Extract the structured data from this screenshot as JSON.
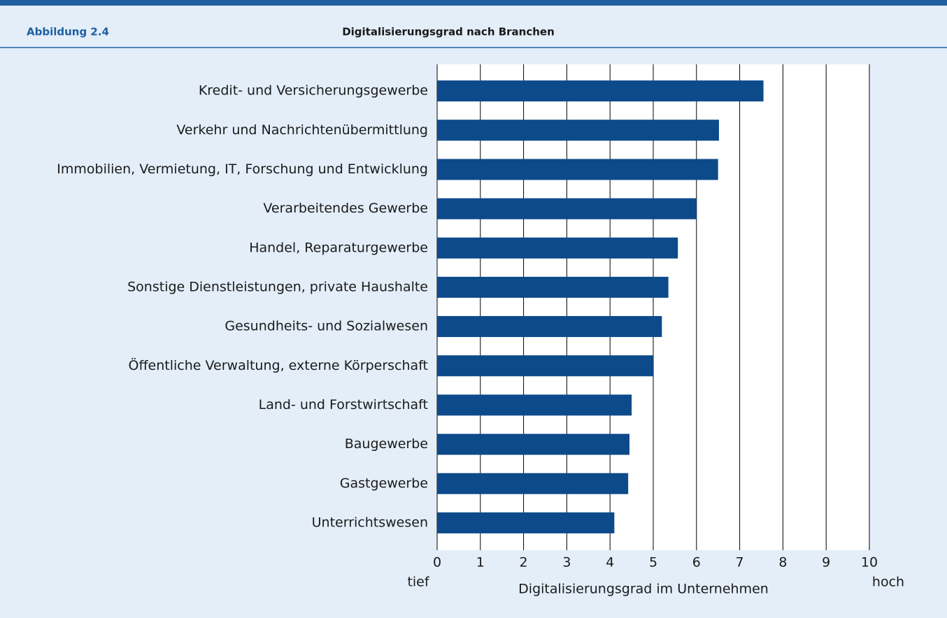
{
  "chart_data": {
    "type": "bar",
    "orientation": "horizontal",
    "figure_label": "Abbildung 2.4",
    "title": "Digitalisierungsgrad nach Branchen",
    "xlabel": "Digitalisierungsgrad  im Unternehmen",
    "annotations": [
      "tief",
      "hoch"
    ],
    "categories": [
      "Kredit- und Versicherungsgewerbe",
      "Verkehr und Nachrichtenübermittlung",
      "Immobilien, Vermietung, IT, Forschung und Entwicklung",
      "Verarbeitendes Gewerbe",
      "Handel, Reparaturgewerbe",
      "Sonstige Dienstleistungen, private Haushalte",
      "Gesundheits- und Sozialwesen",
      "Öffentliche Verwaltung, externe Körperschaft",
      "Land- und Forstwirtschaft",
      "Baugewerbe",
      "Gastgewerbe",
      "Unterrichtswesen"
    ],
    "values": [
      7.55,
      6.52,
      6.5,
      6.0,
      5.57,
      5.35,
      5.2,
      5.0,
      4.5,
      4.45,
      4.42,
      4.1
    ],
    "color": "#0d4a8a",
    "xlim": [
      0,
      10
    ],
    "xticks": [
      0,
      1,
      2,
      3,
      4,
      5,
      6,
      7,
      8,
      9,
      10
    ],
    "grid": true
  }
}
